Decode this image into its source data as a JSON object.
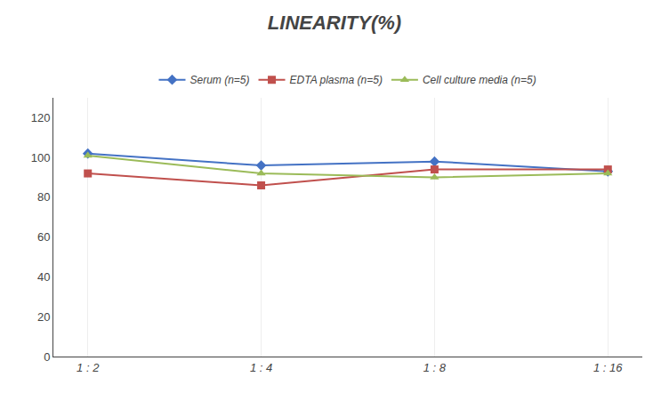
{
  "chart_data": {
    "type": "line",
    "title": "LINEARITY(%)",
    "categories": [
      "1 : 2",
      "1 : 4",
      "1 : 8",
      "1 : 16"
    ],
    "series": [
      {
        "name": "Serum (n=5)",
        "color": "#4472C4",
        "marker": "diamond",
        "values": [
          102,
          96,
          98,
          93
        ]
      },
      {
        "name": "EDTA plasma (n=5)",
        "color": "#C0504D",
        "marker": "square",
        "values": [
          92,
          86,
          94,
          94
        ]
      },
      {
        "name": "Cell culture media (n=5)",
        "color": "#9BBB59",
        "marker": "triangle-up",
        "values": [
          101,
          92,
          90,
          92
        ]
      }
    ],
    "ylim": [
      0,
      130
    ],
    "yticks": [
      0,
      20,
      40,
      60,
      80,
      100,
      120
    ],
    "grid": "x",
    "legend": "top"
  }
}
